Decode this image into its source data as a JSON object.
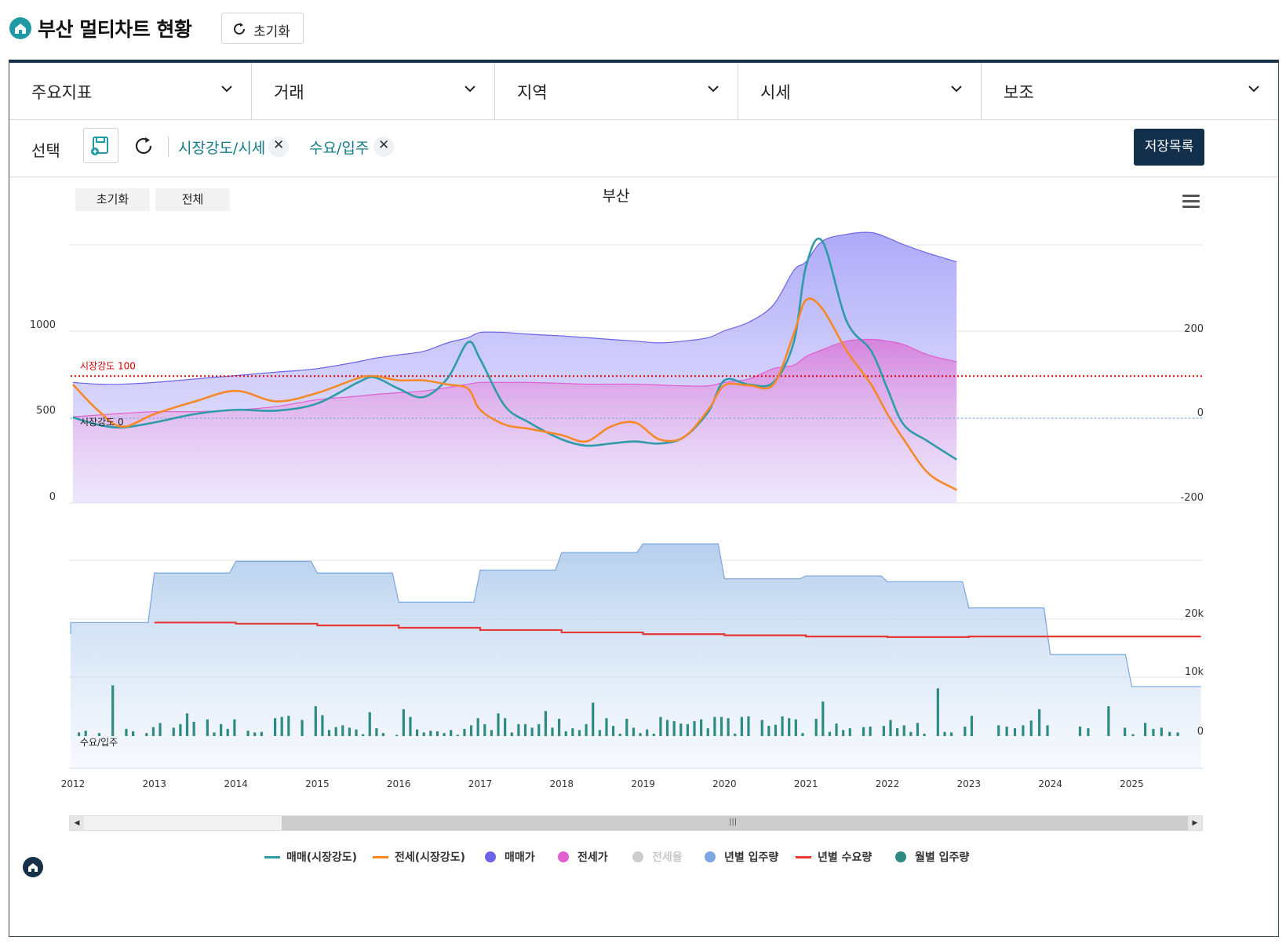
{
  "header": {
    "title": "부산 멀티차트 현황",
    "reset_label": "초기화"
  },
  "menus": [
    "주요지표",
    "거래",
    "지역",
    "시세",
    "보조"
  ],
  "selection": {
    "label": "선택",
    "tags": [
      "시장강도/시세",
      "수요/입주"
    ],
    "save_list_label": "저장목록"
  },
  "chart_controls": {
    "reset_label": "초기화",
    "all_label": "전체"
  },
  "chart_data": {
    "type": "line",
    "title": "부산",
    "years": [
      "2012",
      "2013",
      "2014",
      "2015",
      "2016",
      "2017",
      "2018",
      "2019",
      "2020",
      "2021",
      "2022",
      "2023",
      "2024",
      "2025"
    ],
    "upper_pane": {
      "left_axis_ticks": [
        "1000",
        "500",
        "0"
      ],
      "right_axis_ticks": [
        "200",
        "0",
        "-200"
      ],
      "reference_lines": [
        {
          "label": "시장강도 100",
          "value": 100,
          "color": "#e00000"
        },
        {
          "label": "시장강도 0",
          "value": 0,
          "color": "#7aa7e0"
        }
      ],
      "x": [
        2012.0,
        2012.3,
        2012.6,
        2013.0,
        2013.5,
        2014.0,
        2014.5,
        2015.0,
        2015.5,
        2015.7,
        2016.0,
        2016.3,
        2016.6,
        2016.85,
        2017.0,
        2017.3,
        2017.6,
        2018.0,
        2018.3,
        2018.6,
        2018.9,
        2019.2,
        2019.5,
        2019.8,
        2020.0,
        2020.3,
        2020.6,
        2020.85,
        2021.0,
        2021.2,
        2021.5,
        2021.8,
        2022.0,
        2022.2,
        2022.5,
        2022.85
      ],
      "series": [
        {
          "name": "매매(시장강도)",
          "color": "#2f9ba8",
          "axis": "right",
          "values": [
            2,
            -15,
            -22,
            -10,
            10,
            20,
            18,
            35,
            85,
            97,
            70,
            50,
            95,
            180,
            140,
            30,
            -10,
            -50,
            -65,
            -60,
            -55,
            -60,
            -45,
            15,
            90,
            80,
            85,
            180,
            360,
            420,
            230,
            160,
            70,
            -15,
            -55,
            -98
          ]
        },
        {
          "name": "전세(시장강도)",
          "color": "#f5892a",
          "axis": "right",
          "values": [
            80,
            20,
            -20,
            10,
            40,
            65,
            40,
            60,
            95,
            100,
            90,
            90,
            80,
            70,
            20,
            -15,
            -25,
            -40,
            -55,
            -20,
            -10,
            -50,
            -45,
            20,
            78,
            78,
            80,
            200,
            280,
            260,
            160,
            80,
            10,
            -50,
            -130,
            -170
          ]
        },
        {
          "name": "매매가",
          "color": "#6b63e8",
          "axis": "left",
          "values": [
            700,
            690,
            690,
            700,
            720,
            740,
            760,
            780,
            820,
            840,
            860,
            880,
            930,
            960,
            990,
            990,
            980,
            970,
            960,
            950,
            940,
            930,
            940,
            960,
            1000,
            1050,
            1150,
            1350,
            1400,
            1520,
            1560,
            1570,
            1540,
            1500,
            1450,
            1400
          ]
        },
        {
          "name": "전세가",
          "color": "#e05ed0",
          "axis": "left",
          "values": [
            500,
            510,
            520,
            530,
            530,
            540,
            560,
            600,
            620,
            630,
            640,
            650,
            670,
            690,
            700,
            700,
            700,
            695,
            690,
            690,
            690,
            685,
            680,
            680,
            700,
            720,
            780,
            800,
            850,
            890,
            940,
            950,
            940,
            920,
            860,
            820
          ]
        }
      ]
    },
    "lower_pane": {
      "label": "수요/입주",
      "right_axis_ticks": [
        "20k",
        "10k",
        "0"
      ],
      "annual_supply": [
        {
          "year": 2012,
          "value": 19500
        },
        {
          "year": 2013,
          "value": 28000
        },
        {
          "year": 2014,
          "value": 30000
        },
        {
          "year": 2015,
          "value": 28000
        },
        {
          "year": 2016,
          "value": 23000
        },
        {
          "year": 2017,
          "value": 28500
        },
        {
          "year": 2018,
          "value": 31500
        },
        {
          "year": 2019,
          "value": 33000
        },
        {
          "year": 2020,
          "value": 27000
        },
        {
          "year": 2021,
          "value": 27500
        },
        {
          "year": 2022,
          "value": 26500
        },
        {
          "year": 2023,
          "value": 22000
        },
        {
          "year": 2024,
          "value": 14000
        },
        {
          "year": 2025,
          "value": 8500
        }
      ],
      "annual_demand": [
        {
          "year": 2013,
          "value": 19500
        },
        {
          "year": 2014,
          "value": 19300
        },
        {
          "year": 2015,
          "value": 19000
        },
        {
          "year": 2016,
          "value": 18600
        },
        {
          "year": 2017,
          "value": 18200
        },
        {
          "year": 2018,
          "value": 17800
        },
        {
          "year": 2019,
          "value": 17500
        },
        {
          "year": 2020,
          "value": 17300
        },
        {
          "year": 2021,
          "value": 17100
        },
        {
          "year": 2022,
          "value": 17000
        },
        {
          "year": 2023,
          "value": 17100
        },
        {
          "year": 2024,
          "value": 17100
        },
        {
          "year": 2025,
          "value": 17100
        }
      ],
      "monthly_supply_range_k": [
        0,
        8.5
      ]
    },
    "legend": [
      {
        "name": "매매(시장강도)",
        "color": "#2f9ba8",
        "kind": "line"
      },
      {
        "name": "전세(시장강도)",
        "color": "#f5892a",
        "kind": "line"
      },
      {
        "name": "매매가",
        "color": "#6b63e8",
        "kind": "dot"
      },
      {
        "name": "전세가",
        "color": "#e05ed0",
        "kind": "dot"
      },
      {
        "name": "전세율",
        "color": "#cccccc",
        "kind": "dot",
        "muted": true
      },
      {
        "name": "년별 입주량",
        "color": "#7aa7e0",
        "kind": "dot"
      },
      {
        "name": "년별 수요량",
        "color": "#e53935",
        "kind": "line"
      },
      {
        "name": "월별 입주량",
        "color": "#2e8b84",
        "kind": "dot"
      }
    ]
  }
}
